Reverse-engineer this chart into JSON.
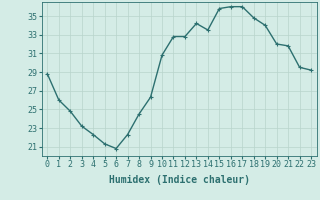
{
  "x": [
    0,
    1,
    2,
    3,
    4,
    5,
    6,
    7,
    8,
    9,
    10,
    11,
    12,
    13,
    14,
    15,
    16,
    17,
    18,
    19,
    20,
    21,
    22,
    23
  ],
  "y": [
    28.8,
    26.0,
    24.8,
    23.2,
    22.3,
    21.3,
    20.8,
    22.3,
    24.5,
    26.3,
    30.8,
    32.8,
    32.8,
    34.2,
    33.5,
    35.8,
    36.0,
    36.0,
    34.8,
    34.0,
    32.0,
    31.8,
    29.5,
    29.2
  ],
  "line_color": "#2d7070",
  "marker": "+",
  "marker_size": 3,
  "bg_color": "#d4ece6",
  "grid_color": "#b8d4cc",
  "xlabel": "Humidex (Indice chaleur)",
  "xlim": [
    -0.5,
    23.5
  ],
  "ylim": [
    20.0,
    36.5
  ],
  "yticks": [
    21,
    23,
    25,
    27,
    29,
    31,
    33,
    35
  ],
  "xtick_labels": [
    "0",
    "1",
    "2",
    "3",
    "4",
    "5",
    "6",
    "7",
    "8",
    "9",
    "10",
    "11",
    "12",
    "13",
    "14",
    "15",
    "16",
    "17",
    "18",
    "19",
    "20",
    "21",
    "22",
    "23"
  ],
  "tick_color": "#2d7070",
  "xlabel_fontsize": 7,
  "tick_fontsize": 6,
  "line_width": 1.0
}
